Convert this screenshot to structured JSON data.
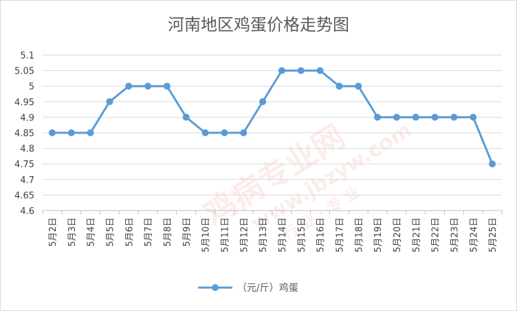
{
  "chart_data": {
    "type": "line",
    "title": "河南地区鸡蛋价格走势图",
    "xlabel": "",
    "ylabel": "",
    "categories": [
      "5月2日",
      "5月3日",
      "5月4日",
      "5月5日",
      "5月6日",
      "5月7日",
      "5月8日",
      "5月9日",
      "5月10日",
      "5月11日",
      "5月12日",
      "5月13日",
      "5月14日",
      "5月15日",
      "5月16日",
      "5月17日",
      "5月18日",
      "5月19日",
      "5月20日",
      "5月21日",
      "5月22日",
      "5月23日",
      "5月24日",
      "5月25日"
    ],
    "series": [
      {
        "name": "（元/斤）鸡蛋",
        "color": "#5b9bd5",
        "values": [
          4.85,
          4.85,
          4.85,
          4.95,
          5.0,
          5.0,
          5.0,
          4.9,
          4.85,
          4.85,
          4.85,
          4.95,
          5.05,
          5.05,
          5.05,
          5.0,
          5.0,
          4.9,
          4.9,
          4.9,
          4.9,
          4.9,
          4.9,
          4.75
        ]
      }
    ],
    "ylim": [
      4.6,
      5.1
    ],
    "yticks": [
      "4.6",
      "4.65",
      "4.7",
      "4.75",
      "4.8",
      "4.85",
      "4.9",
      "4.95",
      "5",
      "5.05",
      "5.1"
    ],
    "grid": true,
    "legend_position": "bottom"
  },
  "watermark": {
    "main": "鸡病专业网",
    "url": "www.jbzyw.com",
    "sub": "行 业 · 专 业"
  }
}
